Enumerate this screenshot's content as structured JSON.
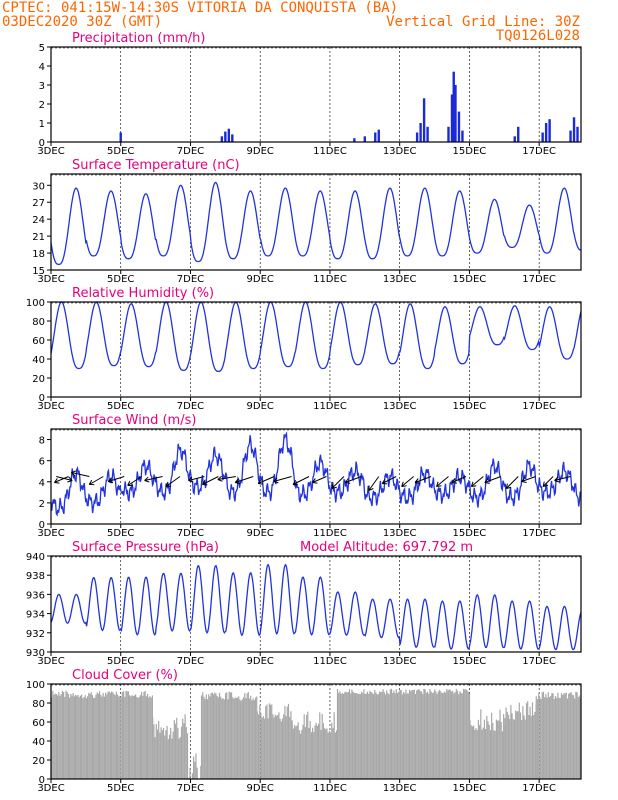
{
  "header": {
    "line1": "CPTEC:   041:15W-14:30S   VITORIA DA CONQUISTA (BA)",
    "line2_left": "03DEC2020 30Z (GMT)",
    "line2_right": "Vertical Grid Line: 30Z",
    "line3_right": "TQ0126L028"
  },
  "x_axis": {
    "labels": [
      "3DEC",
      "5DEC",
      "7DEC",
      "9DEC",
      "11DEC",
      "13DEC",
      "15DEC",
      "17DEC"
    ],
    "label_days": [
      3,
      5,
      7,
      9,
      11,
      13,
      15,
      17
    ],
    "range_days": [
      3,
      18.2
    ]
  },
  "colors": {
    "line": "#2233dd",
    "bars": "#1a2ad8",
    "cloud": "#a8a8a8",
    "title": "#e6007e",
    "header": "#ff6600",
    "grid": "#000000"
  },
  "chart_data": [
    {
      "id": "precip",
      "type": "bar",
      "title": "Precipitation (mm/h)",
      "ylim": [
        0,
        5
      ],
      "yticks": [
        0,
        1,
        2,
        3,
        4,
        5
      ],
      "events": [
        {
          "x": 5.0,
          "y": 0.5
        },
        {
          "x": 7.9,
          "y": 0.3
        },
        {
          "x": 8.0,
          "y": 0.55
        },
        {
          "x": 8.1,
          "y": 0.7
        },
        {
          "x": 8.2,
          "y": 0.4
        },
        {
          "x": 11.7,
          "y": 0.2
        },
        {
          "x": 12.0,
          "y": 0.3
        },
        {
          "x": 12.3,
          "y": 0.5
        },
        {
          "x": 12.4,
          "y": 0.65
        },
        {
          "x": 13.5,
          "y": 0.5
        },
        {
          "x": 13.6,
          "y": 1.0
        },
        {
          "x": 13.7,
          "y": 2.3
        },
        {
          "x": 13.8,
          "y": 0.8
        },
        {
          "x": 14.4,
          "y": 0.8
        },
        {
          "x": 14.5,
          "y": 2.5
        },
        {
          "x": 14.55,
          "y": 3.7
        },
        {
          "x": 14.6,
          "y": 3.0
        },
        {
          "x": 14.7,
          "y": 1.6
        },
        {
          "x": 14.8,
          "y": 0.6
        },
        {
          "x": 16.3,
          "y": 0.3
        },
        {
          "x": 16.4,
          "y": 0.8
        },
        {
          "x": 17.1,
          "y": 0.5
        },
        {
          "x": 17.2,
          "y": 1.0
        },
        {
          "x": 17.3,
          "y": 1.2
        },
        {
          "x": 17.9,
          "y": 0.6
        },
        {
          "x": 18.0,
          "y": 1.3
        },
        {
          "x": 18.1,
          "y": 0.8
        }
      ]
    },
    {
      "id": "temp",
      "type": "line",
      "title": "Surface Temperature (nC)",
      "ylim": [
        15,
        32
      ],
      "yticks": [
        15,
        18,
        21,
        24,
        27,
        30
      ],
      "daily_max": [
        29.5,
        29,
        28.5,
        30,
        30.5,
        29,
        29.5,
        29,
        29,
        29.5,
        29.5,
        29,
        27.5,
        26.5,
        29.5,
        29,
        28.5
      ],
      "daily_min": [
        16,
        17.5,
        17,
        17.5,
        16.5,
        17,
        17.5,
        17.5,
        17,
        17,
        17.5,
        17.5,
        18,
        19,
        18,
        18.5,
        18.5
      ]
    },
    {
      "id": "rh",
      "type": "line",
      "title": "Relative Humidity (%)",
      "ylim": [
        0,
        100
      ],
      "yticks": [
        0,
        20,
        40,
        60,
        80,
        100
      ],
      "daily_max": [
        100,
        100,
        98,
        100,
        100,
        100,
        100,
        100,
        100,
        98,
        98,
        95,
        95,
        96,
        95,
        98,
        92
      ],
      "daily_min": [
        30,
        33,
        32,
        28,
        27,
        30,
        32,
        30,
        34,
        35,
        30,
        35,
        55,
        50,
        40,
        38,
        40
      ]
    },
    {
      "id": "wind",
      "type": "line",
      "title": "Surface Wind (m/s)",
      "ylim": [
        0,
        9
      ],
      "yticks": [
        0,
        2,
        4,
        6,
        8
      ],
      "daily_max": [
        4.8,
        4.5,
        5.5,
        7,
        6.5,
        7.5,
        8,
        5.8,
        5,
        4.5,
        4.8,
        4.5,
        5.5,
        5.5,
        5,
        5.5,
        5
      ],
      "daily_min": [
        1.5,
        2,
        3,
        3,
        3.5,
        3,
        3,
        2.8,
        3,
        2.5,
        2.5,
        2.8,
        2.5,
        2.5,
        3,
        2.5,
        2.5
      ],
      "vector_y": 4.5,
      "vectors": [
        {
          "x": 3.15,
          "dx": 16,
          "dy": 4
        },
        {
          "x": 3.5,
          "dx": -14,
          "dy": 6
        },
        {
          "x": 4.1,
          "dx": -18,
          "dy": -4
        },
        {
          "x": 4.5,
          "dx": -14,
          "dy": 8
        },
        {
          "x": 5.1,
          "dx": -16,
          "dy": 5
        },
        {
          "x": 5.6,
          "dx": -14,
          "dy": 9
        },
        {
          "x": 6.2,
          "dx": -18,
          "dy": 4
        },
        {
          "x": 6.7,
          "dx": -14,
          "dy": 10
        },
        {
          "x": 7.4,
          "dx": -16,
          "dy": 4
        },
        {
          "x": 7.8,
          "dx": -16,
          "dy": 8
        },
        {
          "x": 8.3,
          "dx": -18,
          "dy": 3
        },
        {
          "x": 8.8,
          "dx": -18,
          "dy": 6
        },
        {
          "x": 9.4,
          "dx": -16,
          "dy": 7
        },
        {
          "x": 9.9,
          "dx": -18,
          "dy": 5
        },
        {
          "x": 10.4,
          "dx": -16,
          "dy": 8
        },
        {
          "x": 10.9,
          "dx": -14,
          "dy": 6
        },
        {
          "x": 11.4,
          "dx": -12,
          "dy": 12
        },
        {
          "x": 11.9,
          "dx": -16,
          "dy": 6
        },
        {
          "x": 12.4,
          "dx": -10,
          "dy": 14
        },
        {
          "x": 12.9,
          "dx": -14,
          "dy": 7
        },
        {
          "x": 13.4,
          "dx": -12,
          "dy": 10
        },
        {
          "x": 13.9,
          "dx": -16,
          "dy": 6
        },
        {
          "x": 14.4,
          "dx": -12,
          "dy": 10
        },
        {
          "x": 14.9,
          "dx": -14,
          "dy": 6
        },
        {
          "x": 15.4,
          "dx": -12,
          "dy": 10
        },
        {
          "x": 15.9,
          "dx": -16,
          "dy": 6
        },
        {
          "x": 16.4,
          "dx": -12,
          "dy": 12
        },
        {
          "x": 16.9,
          "dx": -14,
          "dy": 5
        },
        {
          "x": 17.4,
          "dx": -10,
          "dy": 10
        },
        {
          "x": 17.9,
          "dx": -16,
          "dy": 4
        }
      ]
    },
    {
      "id": "pres",
      "type": "line",
      "title": "Surface Pressure (hPa)",
      "annotation": "Model Altitude: 697.792 m",
      "ylim": [
        930,
        940
      ],
      "yticks": [
        930,
        932,
        934,
        936,
        938,
        940
      ],
      "daily_max": [
        935.5,
        937.5,
        937.5,
        938,
        938.5,
        938.5,
        939.2,
        937.5,
        935.5,
        934.5,
        935,
        935,
        935.5,
        935,
        934.5,
        934,
        933.5
      ],
      "daily_min": [
        932.5,
        932,
        931.5,
        932,
        931.5,
        932,
        932,
        931.5,
        931,
        930.5,
        930,
        930,
        930,
        930,
        930,
        930,
        930
      ],
      "daily_mid": [
        934.5,
        935,
        934.8,
        935.2,
        935.5,
        935,
        935.5,
        934.8,
        934,
        933.5,
        933,
        932.8,
        933.2,
        932.8,
        932.5,
        932.2,
        932
      ]
    },
    {
      "id": "cloud",
      "type": "area",
      "title": "Cloud Cover (%)",
      "ylim": [
        0,
        100
      ],
      "yticks": [
        0,
        20,
        40,
        60,
        80,
        100
      ],
      "segments": [
        {
          "from": 3.0,
          "to": 5.9,
          "base": 93,
          "var": 8
        },
        {
          "from": 5.9,
          "to": 6.9,
          "base": 70,
          "var": 28
        },
        {
          "from": 6.9,
          "to": 7.3,
          "base": 35,
          "var": 40
        },
        {
          "from": 7.3,
          "to": 8.9,
          "base": 92,
          "var": 10
        },
        {
          "from": 8.9,
          "to": 9.9,
          "base": 80,
          "var": 20
        },
        {
          "from": 9.9,
          "to": 11.2,
          "base": 72,
          "var": 25
        },
        {
          "from": 11.2,
          "to": 15.0,
          "base": 95,
          "var": 6
        },
        {
          "from": 15.0,
          "to": 16.0,
          "base": 75,
          "var": 25
        },
        {
          "from": 16.0,
          "to": 16.9,
          "base": 82,
          "var": 20
        },
        {
          "from": 16.9,
          "to": 18.2,
          "base": 92,
          "var": 8
        }
      ]
    }
  ]
}
